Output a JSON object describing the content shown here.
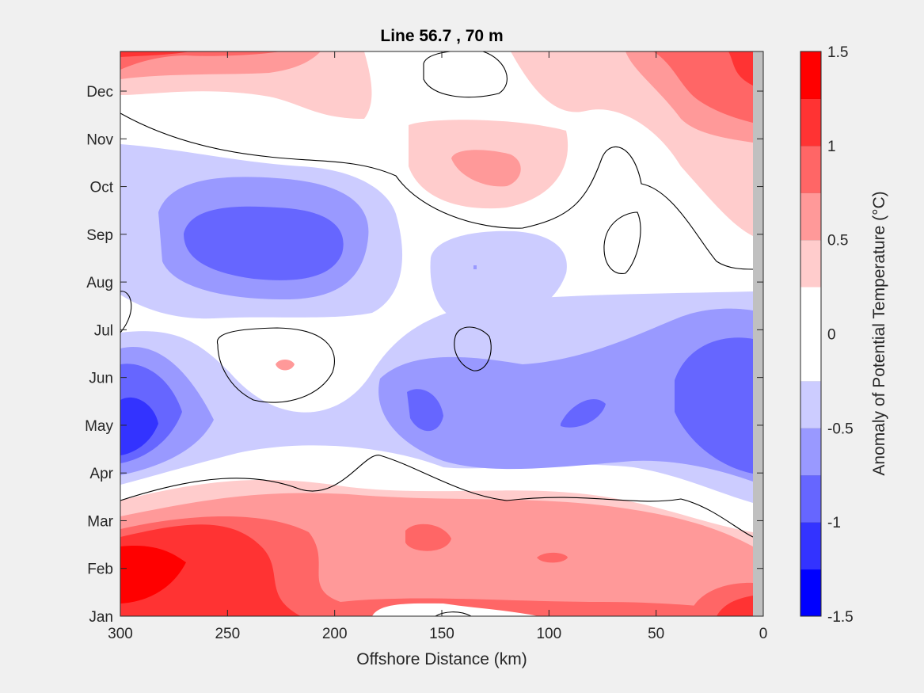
{
  "chart_data": {
    "type": "heatmap",
    "subtype": "filled-contour",
    "title": "Line 56.7 , 70 m",
    "xlabel": "Offshore Distance (km)",
    "ylabel": "",
    "xlim": [
      300,
      0
    ],
    "x_reversed": true,
    "x_ticks": [
      "300",
      "250",
      "200",
      "150",
      "100",
      "50",
      "0"
    ],
    "y_ticks": [
      "Jan",
      "Feb",
      "Mar",
      "Apr",
      "May",
      "Jun",
      "Jul",
      "Aug",
      "Sep",
      "Oct",
      "Nov",
      "Dec"
    ],
    "colorbar": {
      "label": "Anomaly of Potential Temperature (°C)",
      "range": [
        -1.5,
        1.5
      ],
      "ticks": [
        "1.5",
        "1",
        "0.5",
        "0",
        "-0.5",
        "-1",
        "-1.5"
      ],
      "levels": [
        -1.5,
        -1.25,
        -1.0,
        -0.75,
        -0.5,
        -0.25,
        0,
        0.25,
        0.5,
        0.75,
        1.0,
        1.25,
        1.5
      ],
      "colors": [
        "#0000ff",
        "#3333ff",
        "#6666ff",
        "#9999ff",
        "#ccccff",
        "#ffffff",
        "#ffffff",
        "#ffcccc",
        "#ff9999",
        "#ff6666",
        "#ff3333",
        "#ff0000"
      ]
    },
    "zero_contour_color": "#000000",
    "coastal_mask_color": "#c0c0c0",
    "features": [
      {
        "x": 290,
        "month": "Feb",
        "value": 1.4
      },
      {
        "x": 240,
        "month": "Sep",
        "value": -1.0
      },
      {
        "x": 295,
        "month": "May",
        "value": -1.1
      },
      {
        "x": 155,
        "month": "May",
        "value": -0.9
      },
      {
        "x": 80,
        "month": "May",
        "value": -0.9
      },
      {
        "x": 20,
        "month": "Jun",
        "value": -0.9
      },
      {
        "x": 20,
        "month": "Dec",
        "value": 1.0
      },
      {
        "x": 130,
        "month": "Nov",
        "value": 0.6
      },
      {
        "x": 145,
        "month": "Feb",
        "value": 0.9
      },
      {
        "x": 95,
        "month": "Feb",
        "value": 0.8
      }
    ]
  }
}
